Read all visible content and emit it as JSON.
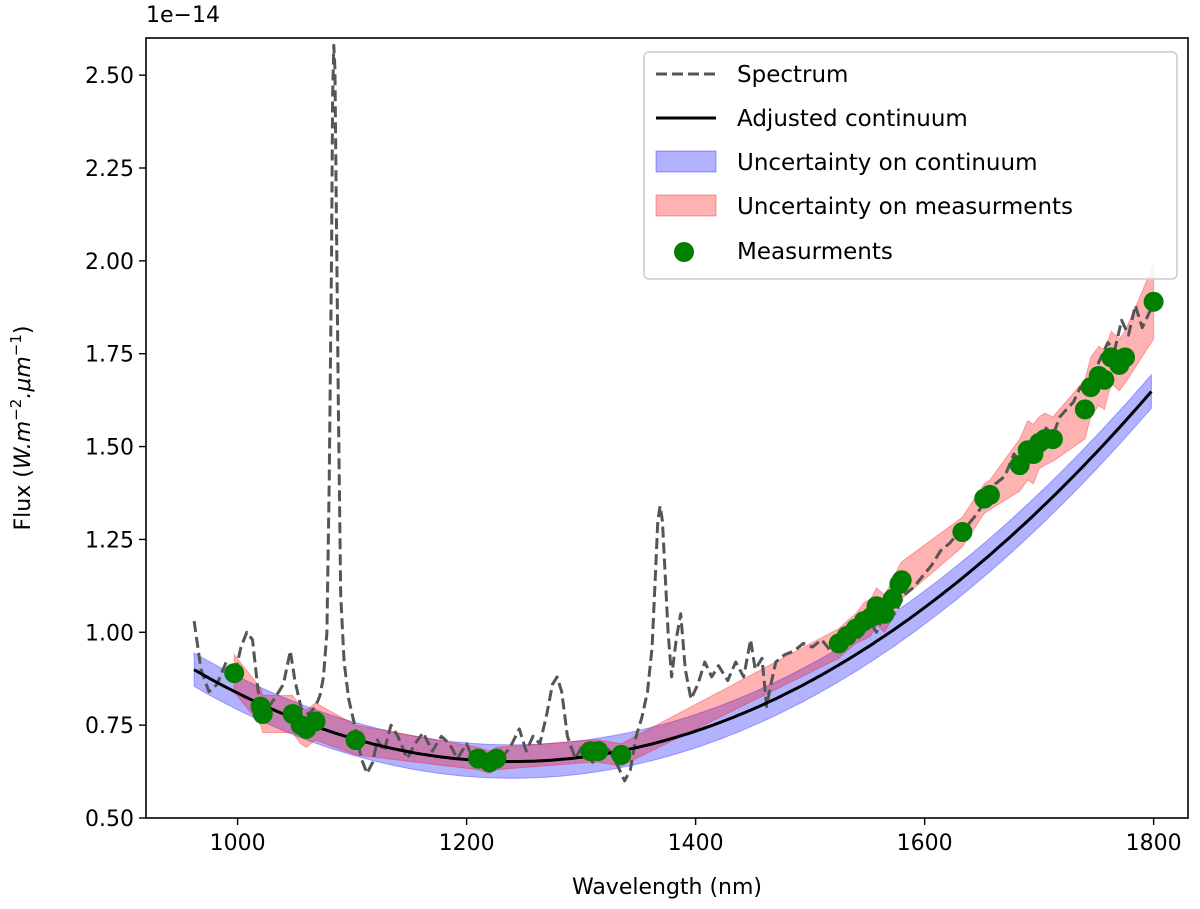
{
  "chart_data": {
    "type": "line",
    "title": "",
    "xlabel": "Wavelength (nm)",
    "ylabel": "Flux (W.m⁻².μm⁻¹)",
    "ylabel_parts": {
      "prefix": "Flux (",
      "unit": "W.m",
      "exp1": "−2",
      "mid": ".μm",
      "exp2": "−1",
      "suffix": ")"
    },
    "scale_label": "1e−14",
    "xlim": [
      920,
      1830
    ],
    "ylim": [
      0.5,
      2.6
    ],
    "xticks": [
      1000,
      1200,
      1400,
      1600,
      1800
    ],
    "xtick_labels": [
      "1000",
      "1200",
      "1400",
      "1600",
      "1800"
    ],
    "yticks": [
      0.5,
      0.75,
      1.0,
      1.25,
      1.5,
      1.75,
      2.0,
      2.25,
      2.5
    ],
    "ytick_labels": [
      "0.50",
      "0.75",
      "1.00",
      "1.25",
      "1.50",
      "1.75",
      "2.00",
      "2.25",
      "2.50"
    ],
    "legend": {
      "position": "top-right",
      "entries": [
        {
          "label": "Spectrum",
          "style": "dashed-line",
          "color": "#555555"
        },
        {
          "label": "Adjusted continuum",
          "style": "solid-line",
          "color": "#000000"
        },
        {
          "label": "Uncertainty on continuum",
          "style": "band",
          "color": "#0000ff"
        },
        {
          "label": "Uncertainty on measurments",
          "style": "band",
          "color": "#ff0000"
        },
        {
          "label": "Measurments",
          "style": "marker",
          "color": "#007f00"
        }
      ]
    },
    "continuum": {
      "name": "Adjusted continuum",
      "model": "quadratic",
      "vertex_x": 1240,
      "vertex_y": 0.652,
      "a": 3.2e-06,
      "x_range": [
        962,
        1800
      ],
      "uncertainty_halfwidth": 0.045
    },
    "series": [
      {
        "name": "Spectrum",
        "color": "#555555",
        "style": "dashed",
        "points": [
          [
            962,
            1.03
          ],
          [
            968,
            0.9
          ],
          [
            975,
            0.84
          ],
          [
            982,
            0.86
          ],
          [
            990,
            0.92
          ],
          [
            997,
            0.88
          ],
          [
            1003,
            0.96
          ],
          [
            1008,
            1.0
          ],
          [
            1013,
            0.98
          ],
          [
            1018,
            0.84
          ],
          [
            1025,
            0.79
          ],
          [
            1032,
            0.82
          ],
          [
            1040,
            0.86
          ],
          [
            1046,
            0.95
          ],
          [
            1050,
            0.87
          ],
          [
            1056,
            0.79
          ],
          [
            1062,
            0.78
          ],
          [
            1068,
            0.8
          ],
          [
            1072,
            0.83
          ],
          [
            1075,
            0.88
          ],
          [
            1078,
            1.0
          ],
          [
            1080,
            1.4
          ],
          [
            1082,
            2.0
          ],
          [
            1083,
            2.44
          ],
          [
            1084,
            2.58
          ],
          [
            1085,
            2.52
          ],
          [
            1086,
            2.2
          ],
          [
            1088,
            1.6
          ],
          [
            1090,
            1.1
          ],
          [
            1093,
            0.92
          ],
          [
            1097,
            0.82
          ],
          [
            1103,
            0.74
          ],
          [
            1108,
            0.66
          ],
          [
            1113,
            0.62
          ],
          [
            1118,
            0.65
          ],
          [
            1122,
            0.71
          ],
          [
            1128,
            0.68
          ],
          [
            1134,
            0.75
          ],
          [
            1140,
            0.72
          ],
          [
            1148,
            0.66
          ],
          [
            1155,
            0.7
          ],
          [
            1162,
            0.73
          ],
          [
            1170,
            0.68
          ],
          [
            1178,
            0.72
          ],
          [
            1185,
            0.7
          ],
          [
            1192,
            0.66
          ],
          [
            1200,
            0.7
          ],
          [
            1208,
            0.64
          ],
          [
            1215,
            0.66
          ],
          [
            1222,
            0.63
          ],
          [
            1230,
            0.66
          ],
          [
            1238,
            0.69
          ],
          [
            1246,
            0.74
          ],
          [
            1252,
            0.68
          ],
          [
            1258,
            0.72
          ],
          [
            1264,
            0.7
          ],
          [
            1270,
            0.78
          ],
          [
            1275,
            0.86
          ],
          [
            1279,
            0.88
          ],
          [
            1283,
            0.84
          ],
          [
            1288,
            0.72
          ],
          [
            1295,
            0.66
          ],
          [
            1302,
            0.7
          ],
          [
            1310,
            0.65
          ],
          [
            1318,
            0.7
          ],
          [
            1325,
            0.68
          ],
          [
            1332,
            0.64
          ],
          [
            1338,
            0.6
          ],
          [
            1343,
            0.63
          ],
          [
            1348,
            0.72
          ],
          [
            1353,
            0.77
          ],
          [
            1358,
            0.84
          ],
          [
            1362,
            0.96
          ],
          [
            1365,
            1.16
          ],
          [
            1367,
            1.3
          ],
          [
            1369,
            1.34
          ],
          [
            1371,
            1.3
          ],
          [
            1373,
            1.18
          ],
          [
            1376,
            1.0
          ],
          [
            1379,
            0.88
          ],
          [
            1383,
            0.98
          ],
          [
            1387,
            1.05
          ],
          [
            1391,
            0.9
          ],
          [
            1396,
            0.82
          ],
          [
            1402,
            0.86
          ],
          [
            1408,
            0.92
          ],
          [
            1414,
            0.88
          ],
          [
            1420,
            0.91
          ],
          [
            1428,
            0.87
          ],
          [
            1435,
            0.92
          ],
          [
            1442,
            0.88
          ],
          [
            1448,
            0.98
          ],
          [
            1452,
            0.9
          ],
          [
            1458,
            0.93
          ],
          [
            1462,
            0.8
          ],
          [
            1465,
            0.85
          ],
          [
            1470,
            0.92
          ],
          [
            1478,
            0.94
          ],
          [
            1486,
            0.95
          ],
          [
            1494,
            0.97
          ],
          [
            1502,
            0.96
          ],
          [
            1510,
            0.98
          ],
          [
            1518,
            0.95
          ],
          [
            1526,
            1.0
          ],
          [
            1534,
            1.02
          ],
          [
            1542,
            0.98
          ],
          [
            1550,
            1.04
          ],
          [
            1558,
            1.0
          ],
          [
            1566,
            1.06
          ],
          [
            1574,
            1.05
          ],
          [
            1582,
            1.1
          ],
          [
            1590,
            1.12
          ],
          [
            1598,
            1.15
          ],
          [
            1606,
            1.18
          ],
          [
            1614,
            1.22
          ],
          [
            1622,
            1.24
          ],
          [
            1630,
            1.27
          ],
          [
            1638,
            1.29
          ],
          [
            1646,
            1.32
          ],
          [
            1654,
            1.36
          ],
          [
            1662,
            1.4
          ],
          [
            1670,
            1.42
          ],
          [
            1678,
            1.48
          ],
          [
            1686,
            1.45
          ],
          [
            1694,
            1.52
          ],
          [
            1700,
            1.49
          ],
          [
            1706,
            1.55
          ],
          [
            1712,
            1.53
          ],
          [
            1718,
            1.58
          ],
          [
            1724,
            1.6
          ],
          [
            1730,
            1.62
          ],
          [
            1736,
            1.66
          ],
          [
            1742,
            1.64
          ],
          [
            1748,
            1.7
          ],
          [
            1754,
            1.74
          ],
          [
            1760,
            1.78
          ],
          [
            1766,
            1.76
          ],
          [
            1772,
            1.84
          ],
          [
            1778,
            1.8
          ],
          [
            1784,
            1.88
          ],
          [
            1790,
            1.82
          ],
          [
            1796,
            1.86
          ],
          [
            1800,
            1.88
          ]
        ]
      },
      {
        "name": "Measurments",
        "color": "#007f00",
        "style": "markers",
        "points": [
          [
            997,
            0.89
          ],
          [
            1020,
            0.8
          ],
          [
            1022,
            0.78
          ],
          [
            1048,
            0.78
          ],
          [
            1055,
            0.75
          ],
          [
            1060,
            0.74
          ],
          [
            1068,
            0.76
          ],
          [
            1103,
            0.71
          ],
          [
            1210,
            0.66
          ],
          [
            1220,
            0.65
          ],
          [
            1226,
            0.66
          ],
          [
            1308,
            0.68
          ],
          [
            1315,
            0.68
          ],
          [
            1335,
            0.67
          ],
          [
            1525,
            0.97
          ],
          [
            1532,
            0.99
          ],
          [
            1540,
            1.01
          ],
          [
            1547,
            1.03
          ],
          [
            1553,
            1.04
          ],
          [
            1558,
            1.07
          ],
          [
            1565,
            1.05
          ],
          [
            1572,
            1.09
          ],
          [
            1578,
            1.13
          ],
          [
            1580,
            1.14
          ],
          [
            1633,
            1.27
          ],
          [
            1652,
            1.36
          ],
          [
            1657,
            1.37
          ],
          [
            1683,
            1.45
          ],
          [
            1690,
            1.49
          ],
          [
            1695,
            1.48
          ],
          [
            1700,
            1.51
          ],
          [
            1705,
            1.52
          ],
          [
            1712,
            1.52
          ],
          [
            1740,
            1.6
          ],
          [
            1745,
            1.66
          ],
          [
            1752,
            1.69
          ],
          [
            1757,
            1.68
          ],
          [
            1763,
            1.74
          ],
          [
            1770,
            1.72
          ],
          [
            1775,
            1.74
          ],
          [
            1800,
            1.89
          ]
        ],
        "errors": [
          0.05,
          0.05,
          0.05,
          0.05,
          0.05,
          0.05,
          0.05,
          0.04,
          0.03,
          0.03,
          0.03,
          0.03,
          0.03,
          0.03,
          0.04,
          0.04,
          0.04,
          0.05,
          0.05,
          0.05,
          0.05,
          0.05,
          0.05,
          0.05,
          0.04,
          0.04,
          0.04,
          0.07,
          0.08,
          0.08,
          0.07,
          0.07,
          0.06,
          0.08,
          0.08,
          0.08,
          0.08,
          0.07,
          0.07,
          0.07,
          0.1
        ]
      }
    ]
  }
}
